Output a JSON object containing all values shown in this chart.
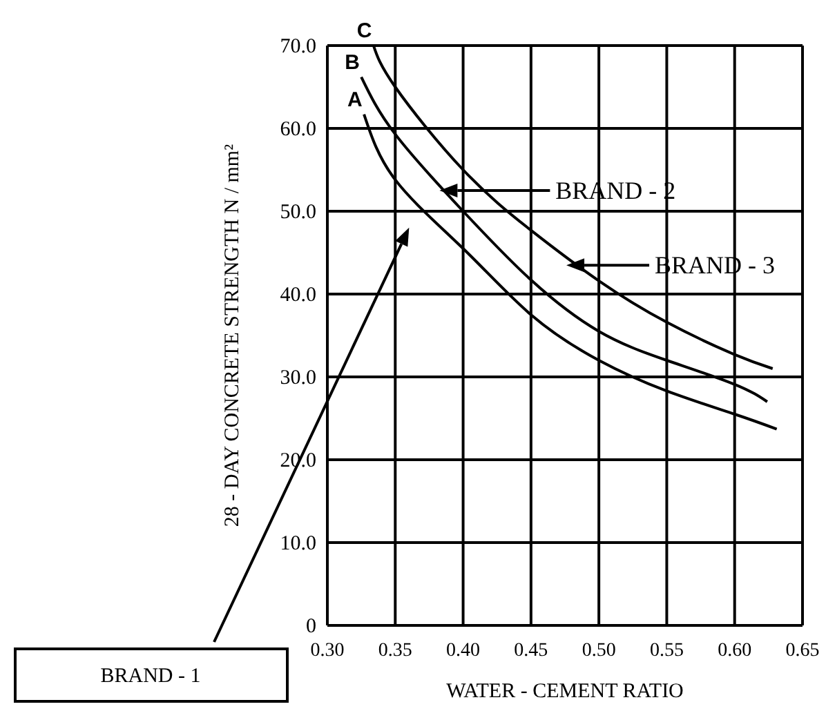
{
  "chart_data": {
    "type": "line",
    "xlabel": "WATER - CEMENT RATIO",
    "ylabel": "28 - DAY CONCRETE STRENGTH N / mm²",
    "xlim": [
      0.3,
      0.65
    ],
    "xticks": [
      {
        "value": 0.3,
        "label": "0.30"
      },
      {
        "value": 0.35,
        "label": "0.35"
      },
      {
        "value": 0.4,
        "label": "0.40"
      },
      {
        "value": 0.45,
        "label": "0.45"
      },
      {
        "value": 0.5,
        "label": "0.50"
      },
      {
        "value": 0.55,
        "label": "0.55"
      },
      {
        "value": 0.6,
        "label": "0.60"
      },
      {
        "value": 0.65,
        "label": "0.65"
      }
    ],
    "ylim": [
      0,
      70
    ],
    "yticks": [
      0,
      {
        "value": 10,
        "label": "10.0"
      },
      {
        "value": 20,
        "label": "20.0"
      },
      {
        "value": 30,
        "label": "30.0"
      },
      {
        "value": 40,
        "label": "40.0"
      },
      {
        "value": 50,
        "label": "50.0"
      },
      {
        "value": 60,
        "label": "60.0"
      },
      {
        "value": 70,
        "label": "70.0"
      }
    ],
    "grid": true,
    "legend": false,
    "marker": "none",
    "line_style": "solid",
    "series": [
      {
        "name": "A",
        "color": "#000000",
        "x": [
          0.327,
          0.35,
          0.4,
          0.45,
          0.5,
          0.55,
          0.6,
          0.631
        ],
        "values": [
          61.7,
          53.8,
          45.5,
          37.5,
          32,
          28.3,
          25.5,
          23.7
        ]
      },
      {
        "name": "B",
        "color": "#000000",
        "x": [
          0.325,
          0.35,
          0.4,
          0.45,
          0.5,
          0.55,
          0.6,
          0.624
        ],
        "values": [
          66.2,
          59.3,
          50,
          41.7,
          35.5,
          32,
          29.1,
          27
        ]
      },
      {
        "name": "C",
        "color": "#000000",
        "x": [
          0.334,
          0.35,
          0.4,
          0.45,
          0.5,
          0.55,
          0.6,
          0.628
        ],
        "values": [
          70,
          65,
          55,
          47.7,
          41.6,
          36.6,
          32.7,
          31
        ]
      }
    ],
    "annotations": [
      "BRAND - 1",
      "BRAND - 2",
      "BRAND - 3"
    ]
  }
}
